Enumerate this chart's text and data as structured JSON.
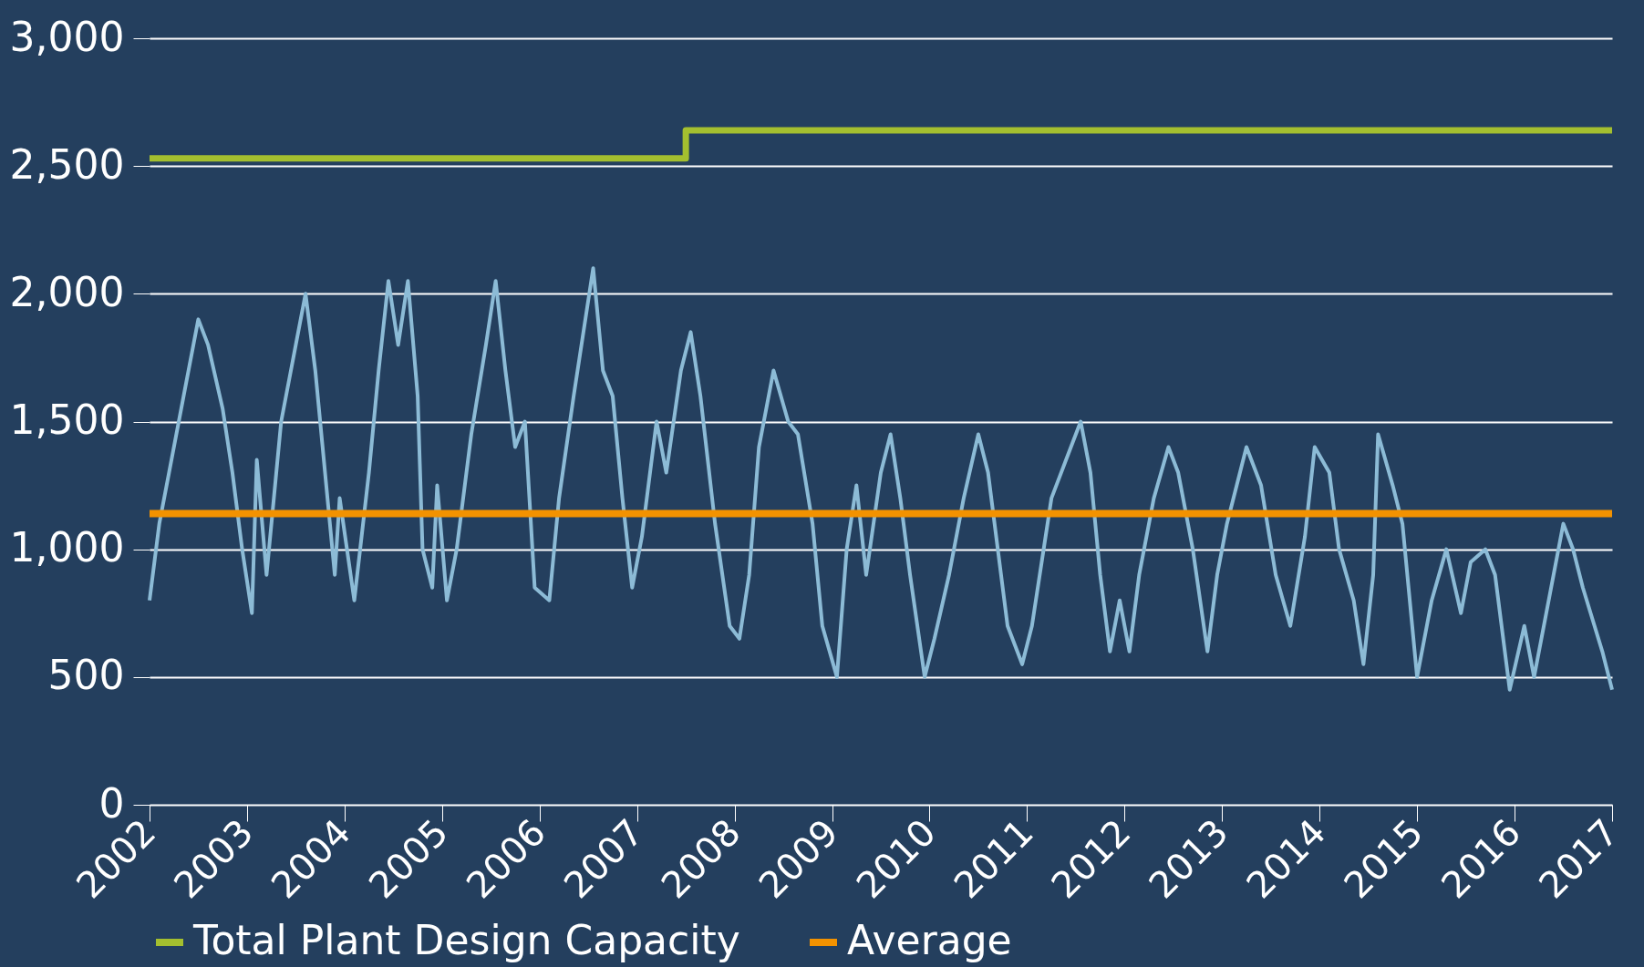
{
  "chart_data": {
    "type": "line",
    "xlim": [
      2002,
      2017
    ],
    "xticks": [
      2002,
      2003,
      2004,
      2005,
      2006,
      2007,
      2008,
      2009,
      2010,
      2011,
      2012,
      2013,
      2014,
      2015,
      2016,
      2017
    ],
    "ylim": [
      0,
      3000
    ],
    "yticks": [
      0,
      500,
      {
        "value": 1000,
        "label": "1,000"
      },
      {
        "value": 1500,
        "label": "1,500"
      },
      {
        "value": 2000,
        "label": "2,000"
      },
      {
        "value": 2500,
        "label": "2,500"
      },
      {
        "value": 3000,
        "label": "3,000"
      }
    ],
    "grid": "y",
    "legend": "bottom",
    "series": [
      {
        "color": "#8cbbd6",
        "x": [
          2002.0,
          2002.1,
          2002.2,
          2002.35,
          2002.5,
          2002.6,
          2002.75,
          2002.85,
          2002.95,
          2003.05,
          2003.1,
          2003.2,
          2003.35,
          2003.5,
          2003.6,
          2003.7,
          2003.8,
          2003.9,
          2003.95,
          2004.1,
          2004.25,
          2004.35,
          2004.45,
          2004.55,
          2004.65,
          2004.75,
          2004.8,
          2004.9,
          2004.95,
          2005.05,
          2005.15,
          2005.3,
          2005.45,
          2005.55,
          2005.65,
          2005.75,
          2005.85,
          2005.95,
          2006.1,
          2006.2,
          2006.35,
          2006.55,
          2006.65,
          2006.75,
          2006.85,
          2006.95,
          2007.05,
          2007.2,
          2007.3,
          2007.45,
          2007.55,
          2007.65,
          2007.8,
          2007.95,
          2008.05,
          2008.15,
          2008.25,
          2008.4,
          2008.55,
          2008.65,
          2008.8,
          2008.9,
          2009.05,
          2009.15,
          2009.25,
          2009.35,
          2009.5,
          2009.6,
          2009.7,
          2009.8,
          2009.95,
          2010.05,
          2010.2,
          2010.35,
          2010.5,
          2010.6,
          2010.7,
          2010.8,
          2010.95,
          2011.05,
          2011.25,
          2011.4,
          2011.55,
          2011.65,
          2011.75,
          2011.85,
          2011.95,
          2012.05,
          2012.15,
          2012.3,
          2012.45,
          2012.55,
          2012.7,
          2012.85,
          2012.95,
          2013.05,
          2013.25,
          2013.4,
          2013.55,
          2013.7,
          2013.85,
          2013.95,
          2014.1,
          2014.2,
          2014.35,
          2014.45,
          2014.55,
          2014.6,
          2014.75,
          2014.85,
          2014.95,
          2015.0,
          2015.15,
          2015.3,
          2015.45,
          2015.55,
          2015.7,
          2015.8,
          2015.9,
          2015.95,
          2016.1,
          2016.2,
          2016.4,
          2016.5,
          2016.6,
          2016.7,
          2016.9,
          2017.0
        ],
        "values": [
          800,
          1100,
          1300,
          1600,
          1900,
          1800,
          1550,
          1300,
          1000,
          750,
          1350,
          900,
          1500,
          1800,
          2000,
          1700,
          1300,
          900,
          1200,
          800,
          1300,
          1700,
          2050,
          1800,
          2050,
          1600,
          1000,
          850,
          1250,
          800,
          1000,
          1450,
          1800,
          2050,
          1700,
          1400,
          1500,
          850,
          800,
          1200,
          1600,
          2100,
          1700,
          1600,
          1200,
          850,
          1050,
          1500,
          1300,
          1700,
          1850,
          1600,
          1100,
          700,
          650,
          900,
          1400,
          1700,
          1500,
          1450,
          1100,
          700,
          500,
          1000,
          1250,
          900,
          1300,
          1450,
          1200,
          900,
          500,
          650,
          900,
          1200,
          1450,
          1300,
          1000,
          700,
          550,
          700,
          1200,
          1350,
          1500,
          1300,
          900,
          600,
          800,
          600,
          900,
          1200,
          1400,
          1300,
          1000,
          600,
          900,
          1100,
          1400,
          1250,
          900,
          700,
          1050,
          1400,
          1300,
          1000,
          800,
          550,
          900,
          1450,
          1250,
          1100,
          700,
          500,
          800,
          1000,
          750,
          950,
          1000,
          900,
          600,
          450,
          700,
          500,
          900,
          1100,
          1000,
          850,
          600,
          450
        ]
      },
      {
        "name": "Total Plant Design Capacity",
        "type": "step",
        "color": "#a4bf2f",
        "x": [
          2002,
          2007.5,
          2017
        ],
        "values": [
          2530,
          2640,
          2640
        ]
      },
      {
        "name": "Average",
        "color": "#f39200",
        "x": [
          2002,
          2017
        ],
        "values": [
          1140,
          1140
        ]
      }
    ]
  }
}
